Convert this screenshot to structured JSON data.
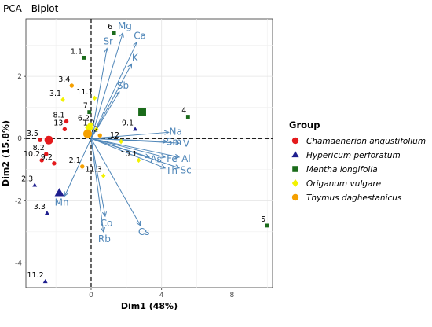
{
  "chart_data": {
    "type": "scatter",
    "subtype": "pca-biplot",
    "title": "PCA - Biplot",
    "xlabel": "Dim1 (48%)",
    "ylabel": "Dim2 (15.8%)",
    "xlim": [
      -3.7,
      10.3
    ],
    "ylim": [
      -4.8,
      3.85
    ],
    "xticks": [
      0,
      4,
      8
    ],
    "yticks": [
      -4,
      -2,
      0,
      2
    ],
    "grid": true,
    "reference_lines": {
      "x": 0,
      "y": 0,
      "style": "dashed"
    },
    "legend": {
      "title": "Group",
      "position": "right",
      "entries": [
        {
          "name": "Chamaenerion angustifolium",
          "color": "#e41a1c",
          "shape": "circle"
        },
        {
          "name": "Hypericum perforatum",
          "color": "#1f1f8f",
          "shape": "triangle"
        },
        {
          "name": "Mentha longifolia",
          "color": "#1a6b1a",
          "shape": "square"
        },
        {
          "name": "Origanum vulgare",
          "color": "#f2f200",
          "shape": "diamond"
        },
        {
          "name": "Thymus daghestanicus",
          "color": "#f5a000",
          "shape": "circle"
        }
      ]
    },
    "points": [
      {
        "label": "3.5",
        "x": -2.9,
        "y": -0.05,
        "group": 0
      },
      {
        "label": "8.2",
        "x": -2.55,
        "y": -0.5,
        "group": 0
      },
      {
        "label": "10.2",
        "x": -2.8,
        "y": -0.7,
        "group": 0
      },
      {
        "label": "13",
        "x": -1.5,
        "y": 0.3,
        "group": 0
      },
      {
        "label": "8.1",
        "x": -1.4,
        "y": 0.55,
        "group": 0
      },
      {
        "label": "9.2",
        "x": -2.1,
        "y": -0.8,
        "group": 0
      },
      {
        "label": "2.3",
        "x": -3.2,
        "y": -1.5,
        "group": 1
      },
      {
        "label": "3.3",
        "x": -2.5,
        "y": -2.4,
        "group": 1
      },
      {
        "label": "11.2",
        "x": -2.6,
        "y": -4.6,
        "group": 1
      },
      {
        "label": "9.1",
        "x": 2.5,
        "y": 0.3,
        "group": 1
      },
      {
        "label": "1.1",
        "x": -0.4,
        "y": 2.6,
        "group": 2
      },
      {
        "label": "6",
        "x": 1.3,
        "y": 3.4,
        "group": 2
      },
      {
        "label": "4",
        "x": 5.5,
        "y": 0.7,
        "group": 2
      },
      {
        "label": "5",
        "x": 10.0,
        "y": -2.8,
        "group": 2
      },
      {
        "label": "7",
        "x": -0.1,
        "y": 0.85,
        "group": 2
      },
      {
        "label": "3.1",
        "x": -1.6,
        "y": 1.25,
        "group": 3
      },
      {
        "label": "11.1",
        "x": 0.2,
        "y": 1.3,
        "group": 3
      },
      {
        "label": "12",
        "x": 1.7,
        "y": -0.1,
        "group": 3
      },
      {
        "label": "1.2",
        "x": 0.3,
        "y": 0.3,
        "group": 3
      },
      {
        "label": "6.2",
        "x": 0.0,
        "y": 0.45,
        "group": 3
      },
      {
        "label": "10.1",
        "x": 2.7,
        "y": -0.7,
        "group": 3
      },
      {
        "label": "11.3",
        "x": 0.7,
        "y": -1.2,
        "group": 3
      },
      {
        "label": "3.4",
        "x": -1.1,
        "y": 1.7,
        "group": 4
      },
      {
        "label": "2.1",
        "x": -0.5,
        "y": -0.9,
        "group": 4
      },
      {
        "label": "2.2",
        "x": 0.5,
        "y": 0.1,
        "group": 4
      }
    ],
    "centroids": [
      {
        "x": -2.4,
        "y": -0.05,
        "group": 0
      },
      {
        "x": -1.8,
        "y": -1.75,
        "group": 1
      },
      {
        "x": 2.9,
        "y": 0.85,
        "group": 2
      },
      {
        "x": -0.1,
        "y": 0.35,
        "group": 3
      },
      {
        "x": -0.2,
        "y": 0.15,
        "group": 4
      }
    ],
    "variables": [
      {
        "name": "Mg",
        "x": 1.8,
        "y": 3.4
      },
      {
        "name": "Ca",
        "x": 2.6,
        "y": 3.1
      },
      {
        "name": "Sr",
        "x": 0.9,
        "y": 2.9
      },
      {
        "name": "K",
        "x": 2.3,
        "y": 2.4
      },
      {
        "name": "Sb",
        "x": 1.6,
        "y": 1.5
      },
      {
        "name": "Na",
        "x": 4.4,
        "y": 0.2
      },
      {
        "name": "Sm",
        "x": 4.3,
        "y": -0.1
      },
      {
        "name": "V",
        "x": 5.0,
        "y": -0.15
      },
      {
        "name": "Fe",
        "x": 4.2,
        "y": -0.6
      },
      {
        "name": "Al",
        "x": 5.0,
        "y": -0.6
      },
      {
        "name": "As",
        "x": 3.3,
        "y": -0.6
      },
      {
        "name": "Th",
        "x": 4.2,
        "y": -0.95
      },
      {
        "name": "Sc",
        "x": 5.0,
        "y": -0.95
      },
      {
        "name": "Mn",
        "x": -1.5,
        "y": -1.85
      },
      {
        "name": "Cs",
        "x": 2.8,
        "y": -2.8
      },
      {
        "name": "Co",
        "x": 0.8,
        "y": -2.5
      },
      {
        "name": "Rb",
        "x": 0.7,
        "y": -3.0
      }
    ]
  }
}
